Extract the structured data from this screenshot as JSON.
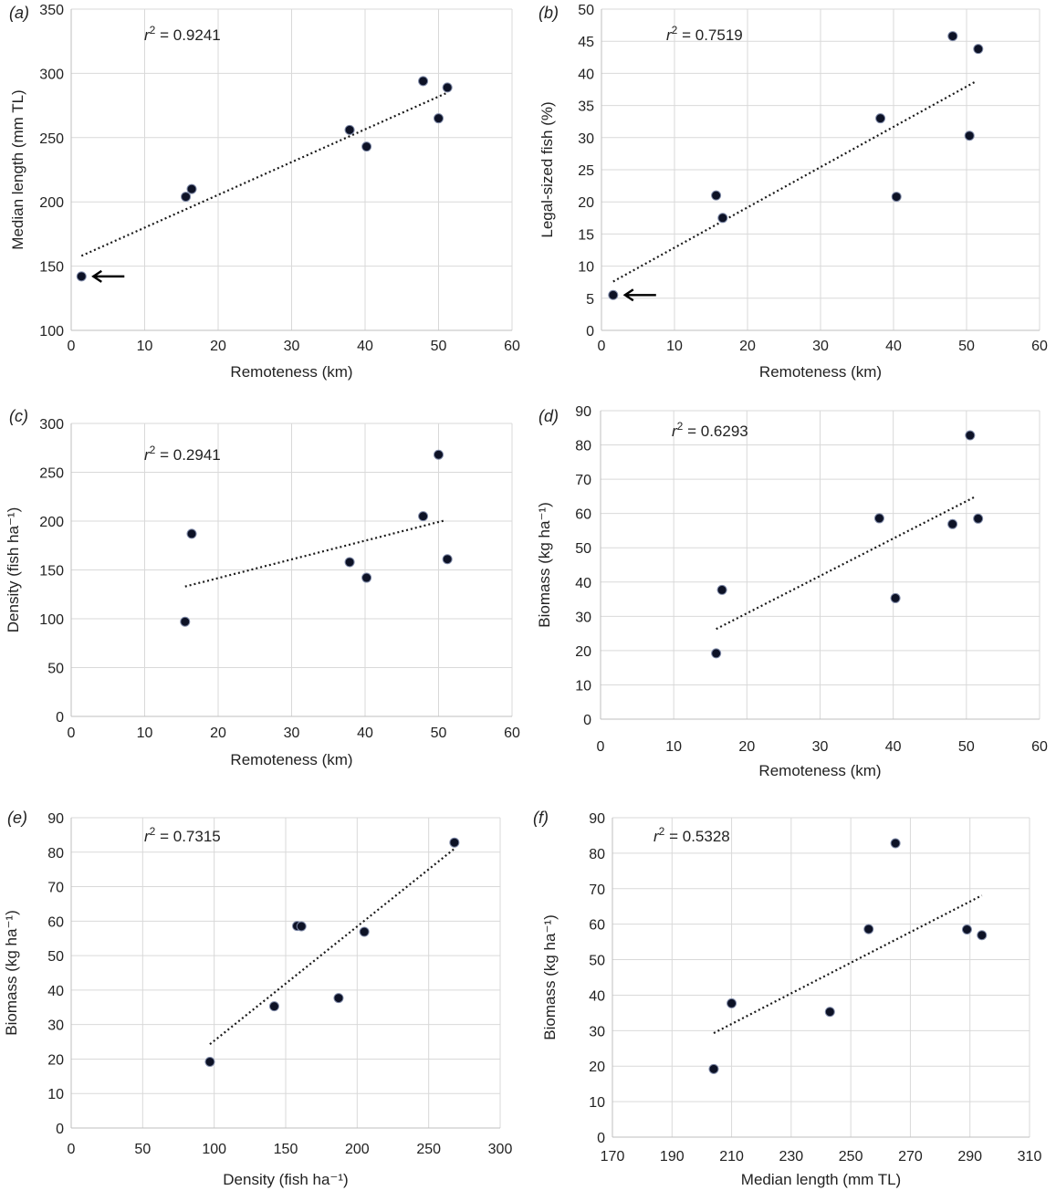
{
  "chart_data": [
    {
      "id": "a",
      "panel_label": "(a)",
      "type": "scatter",
      "r2_label": "r",
      "r2_value": " = 0.9241",
      "xlabel": "Remoteness (km)",
      "ylabel": "Median length (mm TL)",
      "xlim": [
        0,
        60
      ],
      "ylim": [
        100,
        350
      ],
      "xticks": [
        0,
        10,
        20,
        30,
        40,
        50,
        60
      ],
      "yticks": [
        100,
        150,
        200,
        250,
        300,
        350
      ],
      "grid": true,
      "points": [
        [
          1.4,
          142
        ],
        [
          15.6,
          204
        ],
        [
          16.4,
          210
        ],
        [
          37.9,
          256
        ],
        [
          40.2,
          243
        ],
        [
          47.9,
          294
        ],
        [
          50.0,
          265
        ],
        [
          51.2,
          289
        ]
      ],
      "trendline": [
        [
          1.4,
          158
        ],
        [
          51.2,
          285
        ]
      ],
      "arrow_at_point": 0
    },
    {
      "id": "b",
      "panel_label": "(b)",
      "type": "scatter",
      "r2_label": "r",
      "r2_value": " = 0.7519",
      "xlabel": "Remoteness (km)",
      "ylabel": "Legal-sized fish (%)",
      "xlim": [
        0,
        60
      ],
      "ylim": [
        0,
        50
      ],
      "xticks": [
        0,
        10,
        20,
        30,
        40,
        50,
        60
      ],
      "yticks": [
        0,
        5,
        10,
        15,
        20,
        25,
        30,
        35,
        40,
        45,
        50
      ],
      "grid": true,
      "points": [
        [
          1.6,
          5.5
        ],
        [
          15.7,
          21.0
        ],
        [
          16.6,
          17.5
        ],
        [
          38.2,
          33.0
        ],
        [
          40.4,
          20.8
        ],
        [
          48.1,
          45.8
        ],
        [
          50.4,
          30.3
        ],
        [
          51.6,
          43.8
        ]
      ],
      "trendline": [
        [
          1.6,
          7.6
        ],
        [
          51.2,
          38.7
        ]
      ],
      "arrow_at_point": 0
    },
    {
      "id": "c",
      "panel_label": "(c)",
      "type": "scatter",
      "r2_label": "r",
      "r2_value": " = 0.2941",
      "xlabel": "Remoteness (km)",
      "ylabel": "Density (fish ha⁻¹)",
      "xlim": [
        0,
        60
      ],
      "ylim": [
        0,
        300
      ],
      "xticks": [
        0,
        10,
        20,
        30,
        40,
        50,
        60
      ],
      "yticks": [
        0,
        50,
        100,
        150,
        200,
        250,
        300
      ],
      "grid": true,
      "points": [
        [
          15.5,
          97
        ],
        [
          16.4,
          187
        ],
        [
          37.9,
          158
        ],
        [
          40.2,
          142
        ],
        [
          47.9,
          205
        ],
        [
          50.0,
          268
        ],
        [
          51.2,
          161
        ]
      ],
      "trendline": [
        [
          15.5,
          133
        ],
        [
          51.0,
          201
        ]
      ]
    },
    {
      "id": "d",
      "panel_label": "(d)",
      "type": "scatter",
      "r2_label": "r",
      "r2_value": " = 0.6293",
      "xlabel": "Remoteness (km)",
      "ylabel": "Biomass (kg ha⁻¹)",
      "xlim": [
        0,
        60
      ],
      "ylim": [
        0,
        90
      ],
      "xticks": [
        0,
        10,
        20,
        30,
        40,
        50,
        60
      ],
      "yticks": [
        0,
        10,
        20,
        30,
        40,
        50,
        60,
        70,
        80,
        90
      ],
      "grid": true,
      "points": [
        [
          15.8,
          19.2
        ],
        [
          16.6,
          37.7
        ],
        [
          38.1,
          58.6
        ],
        [
          40.3,
          35.3
        ],
        [
          48.1,
          56.9
        ],
        [
          50.5,
          82.8
        ],
        [
          51.6,
          58.5
        ]
      ],
      "trendline": [
        [
          15.8,
          26.3
        ],
        [
          51.2,
          64.9
        ]
      ]
    },
    {
      "id": "e",
      "panel_label": "(e)",
      "type": "scatter",
      "r2_label": "r",
      "r2_value": " = 0.7315",
      "xlabel": "Density (fish ha⁻¹)",
      "ylabel": "Biomass (kg ha⁻¹)",
      "xlim": [
        0,
        300
      ],
      "ylim": [
        0,
        90
      ],
      "xticks": [
        0,
        50,
        100,
        150,
        200,
        250,
        300
      ],
      "yticks": [
        0,
        10,
        20,
        30,
        40,
        50,
        60,
        70,
        80,
        90
      ],
      "grid": true,
      "points": [
        [
          97,
          19.2
        ],
        [
          142,
          35.3
        ],
        [
          158,
          58.6
        ],
        [
          161,
          58.5
        ],
        [
          187,
          37.7
        ],
        [
          205,
          56.9
        ],
        [
          268,
          82.8
        ]
      ],
      "trendline": [
        [
          97,
          24.3
        ],
        [
          268,
          81.0
        ]
      ]
    },
    {
      "id": "f",
      "panel_label": "(f)",
      "type": "scatter",
      "r2_label": "r",
      "r2_value": " = 0.5328",
      "xlabel": "Median length (mm TL)",
      "ylabel": "Biomass (kg ha⁻¹)",
      "xlim": [
        170,
        310
      ],
      "ylim": [
        0,
        90
      ],
      "xticks": [
        170,
        190,
        210,
        230,
        250,
        270,
        290,
        310
      ],
      "yticks": [
        0,
        10,
        20,
        30,
        40,
        50,
        60,
        70,
        80,
        90
      ],
      "grid": true,
      "points": [
        [
          204,
          19.2
        ],
        [
          210,
          37.7
        ],
        [
          243,
          35.3
        ],
        [
          256,
          58.6
        ],
        [
          265,
          82.8
        ],
        [
          289,
          58.5
        ],
        [
          294,
          56.9
        ]
      ],
      "trendline": [
        [
          204,
          29.3
        ],
        [
          294,
          68.1
        ]
      ]
    }
  ]
}
